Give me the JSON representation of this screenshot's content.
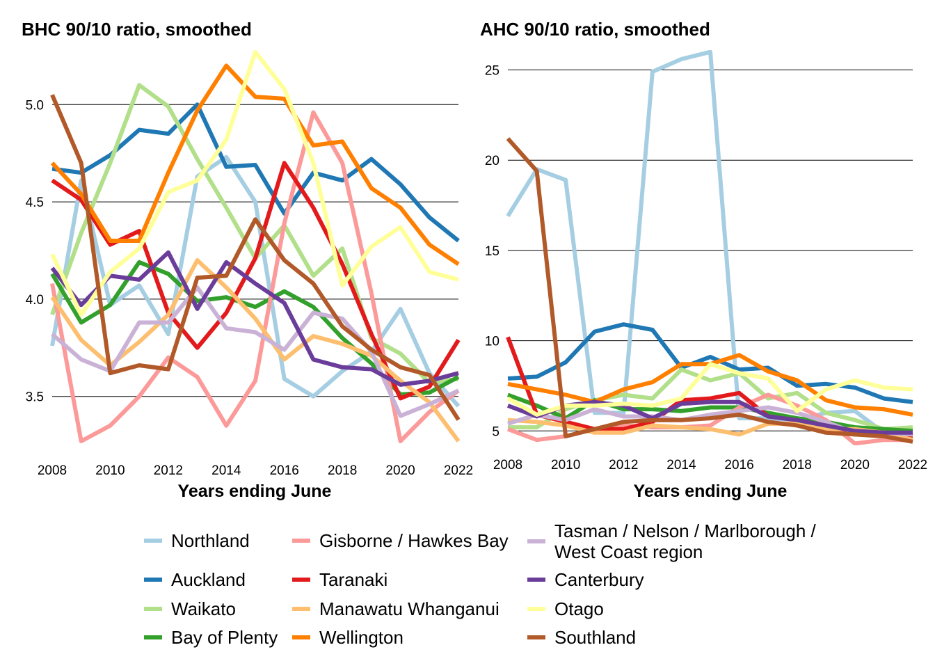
{
  "legend": {
    "entries": [
      {
        "name": "Northland",
        "color": "#a6cee3"
      },
      {
        "name": "Auckland",
        "color": "#1f78b4"
      },
      {
        "name": "Waikato",
        "color": "#b2df8a"
      },
      {
        "name": "Bay of Plenty",
        "color": "#33a02c"
      },
      {
        "name": "Gisborne / Hawkes Bay",
        "color": "#fb9a99"
      },
      {
        "name": "Taranaki",
        "color": "#e31a1c"
      },
      {
        "name": "Manawatu Whanganui",
        "color": "#fdbf6f"
      },
      {
        "name": "Wellington",
        "color": "#ff7f00"
      },
      {
        "name": "Tasman / Nelson / Marlborough /\nWest Coast region",
        "color": "#cab2d6"
      },
      {
        "name": "Canterbury",
        "color": "#6a3d9a"
      },
      {
        "name": "Otago",
        "color": "#ffff99"
      },
      {
        "name": "Southland",
        "color": "#b15928"
      }
    ]
  },
  "chart_data": [
    {
      "type": "line",
      "title": "BHC 90/10 ratio, smoothed",
      "xlabel": "Years ending June",
      "ylabel": "",
      "x": [
        2008,
        2009,
        2010,
        2011,
        2012,
        2013,
        2014,
        2015,
        2016,
        2017,
        2018,
        2019,
        2020,
        2021,
        2022
      ],
      "xlim": [
        2008,
        2022
      ],
      "ylim": [
        3.22,
        5.28
      ],
      "yticks": [
        3.5,
        4.0,
        4.5,
        5.0
      ],
      "xticks": [
        2008,
        2010,
        2012,
        2014,
        2016,
        2018,
        2020,
        2022
      ],
      "series": [
        {
          "name": "Northland",
          "color": "#a6cee3",
          "values": [
            3.76,
            4.61,
            3.97,
            4.07,
            3.82,
            4.63,
            4.73,
            4.5,
            3.59,
            3.5,
            3.63,
            3.73,
            3.95,
            3.62,
            3.45
          ]
        },
        {
          "name": "Auckland",
          "color": "#1f78b4",
          "values": [
            4.67,
            4.65,
            4.74,
            4.87,
            4.85,
            5.0,
            4.68,
            4.69,
            4.44,
            4.65,
            4.61,
            4.72,
            4.59,
            4.42,
            4.3
          ]
        },
        {
          "name": "Waikato",
          "color": "#b2df8a",
          "values": [
            3.92,
            4.34,
            4.7,
            5.1,
            4.99,
            4.72,
            4.47,
            4.21,
            4.38,
            4.12,
            4.26,
            3.8,
            3.72,
            3.57,
            3.59
          ]
        },
        {
          "name": "Bay of Plenty",
          "color": "#33a02c",
          "values": [
            4.13,
            3.88,
            3.97,
            4.19,
            4.13,
            3.99,
            4.01,
            3.96,
            4.04,
            3.96,
            3.8,
            3.67,
            3.51,
            3.52,
            3.6
          ]
        },
        {
          "name": "Gisborne / Hawkes Bay",
          "color": "#fb9a99",
          "values": [
            4.08,
            3.27,
            3.35,
            3.5,
            3.7,
            3.6,
            3.35,
            3.58,
            4.39,
            4.96,
            4.7,
            4.03,
            3.27,
            3.42,
            3.53
          ]
        },
        {
          "name": "Taranaki",
          "color": "#e31a1c",
          "values": [
            4.61,
            4.51,
            4.28,
            4.35,
            3.93,
            3.75,
            3.93,
            4.21,
            4.7,
            4.47,
            4.18,
            3.82,
            3.49,
            3.55,
            3.79
          ]
        },
        {
          "name": "Manawatu Whanganui",
          "color": "#fdbf6f",
          "values": [
            4.01,
            3.79,
            3.66,
            3.78,
            3.92,
            4.2,
            4.06,
            3.9,
            3.69,
            3.81,
            3.77,
            3.71,
            3.58,
            3.47,
            3.27
          ]
        },
        {
          "name": "Wellington",
          "color": "#ff7f00",
          "values": [
            4.7,
            4.54,
            4.3,
            4.3,
            4.65,
            4.97,
            5.2,
            5.04,
            5.03,
            4.79,
            4.81,
            4.57,
            4.47,
            4.28,
            4.18
          ]
        },
        {
          "name": "Tasman / Nelson / Marlborough / West Coast region",
          "color": "#cab2d6",
          "values": [
            3.82,
            3.69,
            3.63,
            3.88,
            3.88,
            4.06,
            3.85,
            3.83,
            3.74,
            3.93,
            3.9,
            3.73,
            3.4,
            3.46,
            3.53
          ]
        },
        {
          "name": "Canterbury",
          "color": "#6a3d9a",
          "values": [
            4.16,
            3.97,
            4.12,
            4.1,
            4.24,
            3.95,
            4.19,
            4.08,
            3.98,
            3.69,
            3.65,
            3.64,
            3.56,
            3.58,
            3.62
          ]
        },
        {
          "name": "Otago",
          "color": "#ffff99",
          "values": [
            4.23,
            3.92,
            4.14,
            4.26,
            4.55,
            4.61,
            4.82,
            5.27,
            5.08,
            4.7,
            4.07,
            4.27,
            4.37,
            4.14,
            4.1
          ]
        },
        {
          "name": "Southland",
          "color": "#b15928",
          "values": [
            5.05,
            4.7,
            3.62,
            3.66,
            3.64,
            4.11,
            4.12,
            4.41,
            4.2,
            4.08,
            3.86,
            3.74,
            3.65,
            3.61,
            3.38
          ]
        }
      ]
    },
    {
      "type": "line",
      "title": "AHC 90/10 ratio, smoothed",
      "xlabel": "Years ending June",
      "ylabel": "",
      "x": [
        2008,
        2009,
        2010,
        2011,
        2012,
        2013,
        2014,
        2015,
        2016,
        2017,
        2018,
        2019,
        2020,
        2021,
        2022
      ],
      "xlim": [
        2008,
        2022
      ],
      "ylim": [
        4.2,
        26.1
      ],
      "yticks": [
        5,
        10,
        15,
        20,
        25
      ],
      "xticks": [
        2008,
        2010,
        2012,
        2014,
        2016,
        2018,
        2020,
        2022
      ],
      "series": [
        {
          "name": "Northland",
          "color": "#a6cee3",
          "values": [
            16.9,
            19.5,
            18.9,
            6.0,
            6.0,
            24.9,
            25.6,
            26.0,
            5.7,
            5.7,
            5.6,
            6.0,
            6.1,
            4.9,
            4.7
          ]
        },
        {
          "name": "Auckland",
          "color": "#1f78b4",
          "values": [
            7.9,
            8.0,
            8.8,
            10.5,
            10.9,
            10.6,
            8.5,
            9.1,
            8.4,
            8.5,
            7.5,
            7.6,
            7.4,
            6.8,
            6.6
          ]
        },
        {
          "name": "Waikato",
          "color": "#b2df8a",
          "values": [
            5.2,
            5.2,
            6.2,
            6.7,
            7.0,
            6.8,
            8.4,
            7.8,
            8.2,
            6.8,
            7.1,
            6.0,
            5.6,
            5.1,
            5.2
          ]
        },
        {
          "name": "Bay of Plenty",
          "color": "#33a02c",
          "values": [
            7.0,
            6.4,
            5.7,
            6.7,
            6.2,
            6.2,
            6.1,
            6.3,
            6.3,
            6.0,
            5.7,
            5.5,
            5.2,
            5.1,
            5.0
          ]
        },
        {
          "name": "Gisborne / Hawkes Bay",
          "color": "#fb9a99",
          "values": [
            5.1,
            4.5,
            4.7,
            5.1,
            5.3,
            5.2,
            5.2,
            5.3,
            6.3,
            7.0,
            6.4,
            5.6,
            4.3,
            4.5,
            4.5
          ]
        },
        {
          "name": "Taranaki",
          "color": "#e31a1c",
          "values": [
            10.2,
            5.9,
            5.5,
            5.1,
            5.1,
            5.5,
            6.7,
            6.8,
            7.1,
            5.8,
            5.6,
            5.2,
            4.8,
            4.8,
            4.7
          ]
        },
        {
          "name": "Manawatu Whanganui",
          "color": "#fdbf6f",
          "values": [
            5.6,
            5.5,
            5.3,
            4.9,
            4.9,
            5.3,
            5.2,
            5.1,
            4.8,
            5.4,
            5.4,
            5.1,
            5.1,
            4.9,
            4.5
          ]
        },
        {
          "name": "Wellington",
          "color": "#ff7f00",
          "values": [
            7.6,
            7.3,
            7.0,
            6.6,
            7.3,
            7.7,
            8.7,
            8.7,
            9.2,
            8.3,
            7.8,
            6.7,
            6.3,
            6.2,
            5.9
          ]
        },
        {
          "name": "Tasman / Nelson / Marlborough / West Coast region",
          "color": "#cab2d6",
          "values": [
            5.4,
            5.9,
            5.6,
            6.2,
            5.8,
            5.8,
            5.6,
            5.9,
            6.1,
            6.3,
            6.0,
            5.5,
            4.9,
            4.9,
            4.8
          ]
        },
        {
          "name": "Canterbury",
          "color": "#6a3d9a",
          "values": [
            6.4,
            5.8,
            6.4,
            6.6,
            6.4,
            5.7,
            6.5,
            6.6,
            6.6,
            5.8,
            5.6,
            5.3,
            5.0,
            4.9,
            4.9
          ]
        },
        {
          "name": "Otago",
          "color": "#ffff99",
          "values": [
            6.8,
            5.9,
            6.4,
            6.4,
            6.5,
            6.4,
            6.8,
            8.7,
            8.2,
            7.9,
            6.1,
            7.3,
            7.8,
            7.4,
            7.3
          ]
        },
        {
          "name": "Southland",
          "color": "#b15928",
          "values": [
            21.2,
            19.4,
            4.7,
            5.1,
            5.5,
            5.6,
            5.6,
            5.7,
            5.9,
            5.5,
            5.3,
            4.9,
            4.8,
            4.7,
            4.4
          ]
        }
      ]
    }
  ]
}
